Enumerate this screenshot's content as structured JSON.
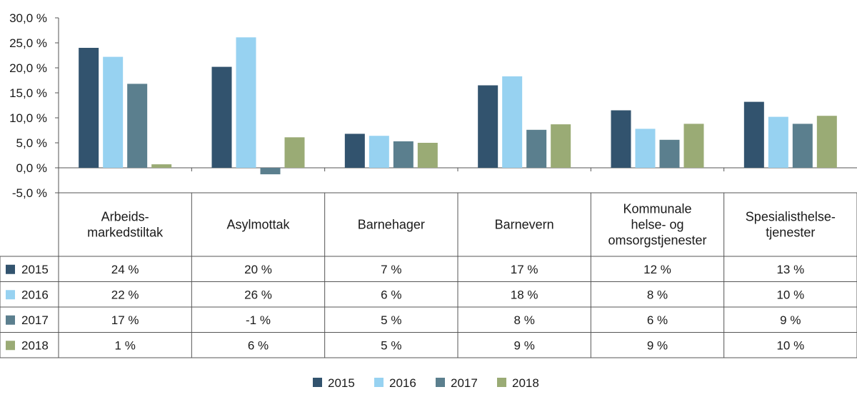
{
  "chart_data": {
    "type": "bar",
    "title": "",
    "xlabel": "",
    "ylabel": "",
    "ylim": [
      -5,
      30
    ],
    "yticks": [
      30,
      25,
      20,
      15,
      10,
      5,
      0,
      -5
    ],
    "ytick_labels": [
      "30,0 %",
      "25,0 %",
      "20,0 %",
      "15,0 %",
      "10,0 %",
      "5,0 %",
      "0,0 %",
      "-5,0 %"
    ],
    "grid": false,
    "legend_position": "bottom-center",
    "categories": [
      [
        "Arbeids-",
        "markedstiltak"
      ],
      [
        "Asylmottak"
      ],
      [
        "Barnehager"
      ],
      [
        "Barnevern"
      ],
      [
        "Kommunale",
        "helse- og",
        "omsorgstjenester"
      ],
      [
        "Spesialisthelse-",
        "tjenester"
      ]
    ],
    "series": [
      {
        "name": "2015",
        "color": "#32536e",
        "values": [
          24.0,
          20.2,
          6.8,
          16.5,
          11.5,
          13.2
        ],
        "table": [
          "24 %",
          "20 %",
          "7 %",
          "17 %",
          "12 %",
          "13 %"
        ]
      },
      {
        "name": "2016",
        "color": "#97d2f1",
        "values": [
          22.2,
          26.1,
          6.4,
          18.3,
          7.8,
          10.2
        ],
        "table": [
          "22 %",
          "26 %",
          "6 %",
          "18 %",
          "8 %",
          "10 %"
        ]
      },
      {
        "name": "2017",
        "color": "#5b7f8e",
        "values": [
          16.8,
          -1.3,
          5.3,
          7.6,
          5.6,
          8.8
        ],
        "table": [
          "17 %",
          "-1 %",
          "5 %",
          "8 %",
          "6 %",
          "9 %"
        ]
      },
      {
        "name": "2018",
        "color": "#9aab75",
        "values": [
          0.7,
          6.1,
          5.0,
          8.7,
          8.8,
          10.4
        ],
        "table": [
          "1 %",
          "6 %",
          "5 %",
          "9 %",
          "9 %",
          "10 %"
        ]
      }
    ]
  }
}
